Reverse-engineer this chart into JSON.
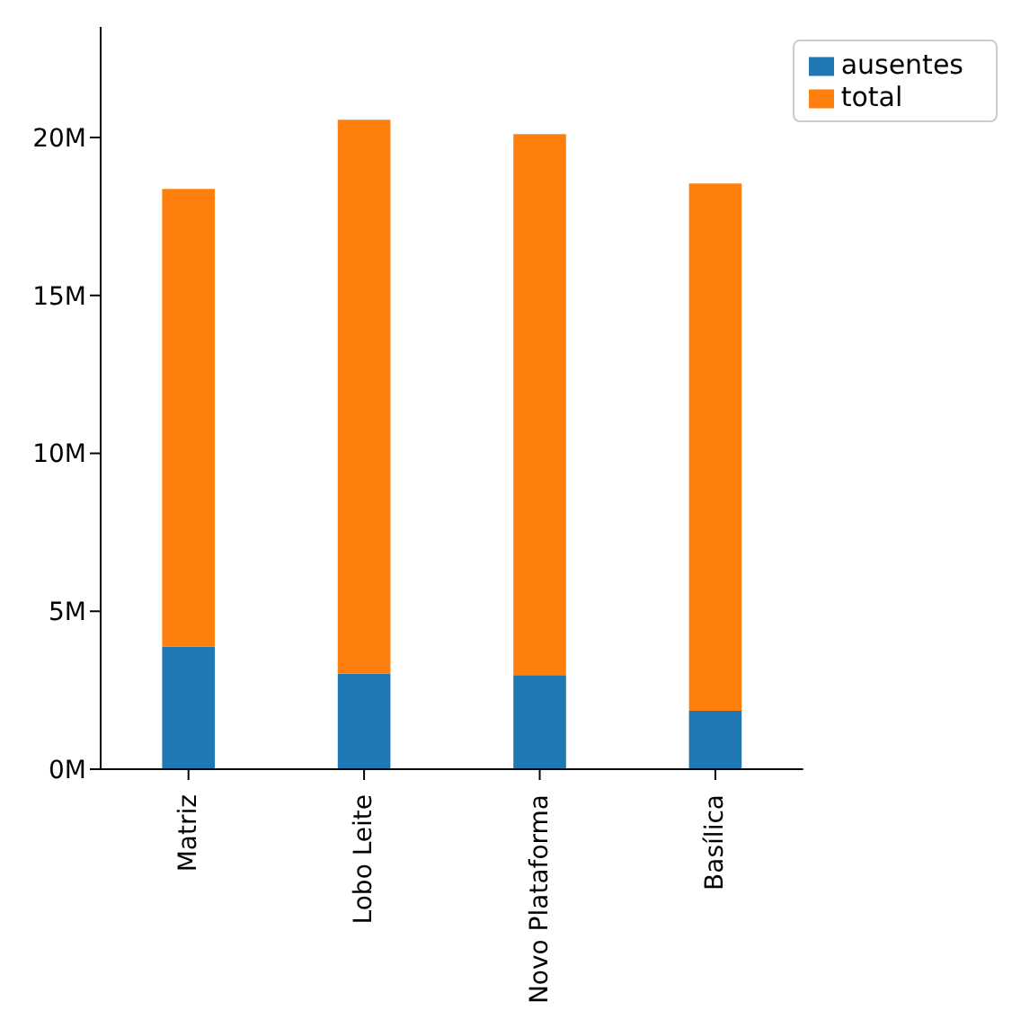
{
  "chart_data": {
    "type": "bar",
    "stacked": true,
    "categories": [
      "Matriz",
      "Lobo Leite",
      "Novo Plataforma",
      "Basílica"
    ],
    "series": [
      {
        "name": "ausentes",
        "color": "#1f77b4",
        "values": [
          3.88,
          3.03,
          2.98,
          1.85
        ]
      },
      {
        "name": "total",
        "color": "#ff7f0e",
        "values": [
          14.49,
          17.53,
          17.13,
          16.69
        ]
      }
    ],
    "ylim": [
      0,
      23.5
    ],
    "yticks": [
      {
        "value": 0,
        "label": "0M"
      },
      {
        "value": 5,
        "label": "5M"
      },
      {
        "value": 10,
        "label": "10M"
      },
      {
        "value": 15,
        "label": "15M"
      },
      {
        "value": 20,
        "label": "20M"
      }
    ],
    "legend": "top right"
  }
}
